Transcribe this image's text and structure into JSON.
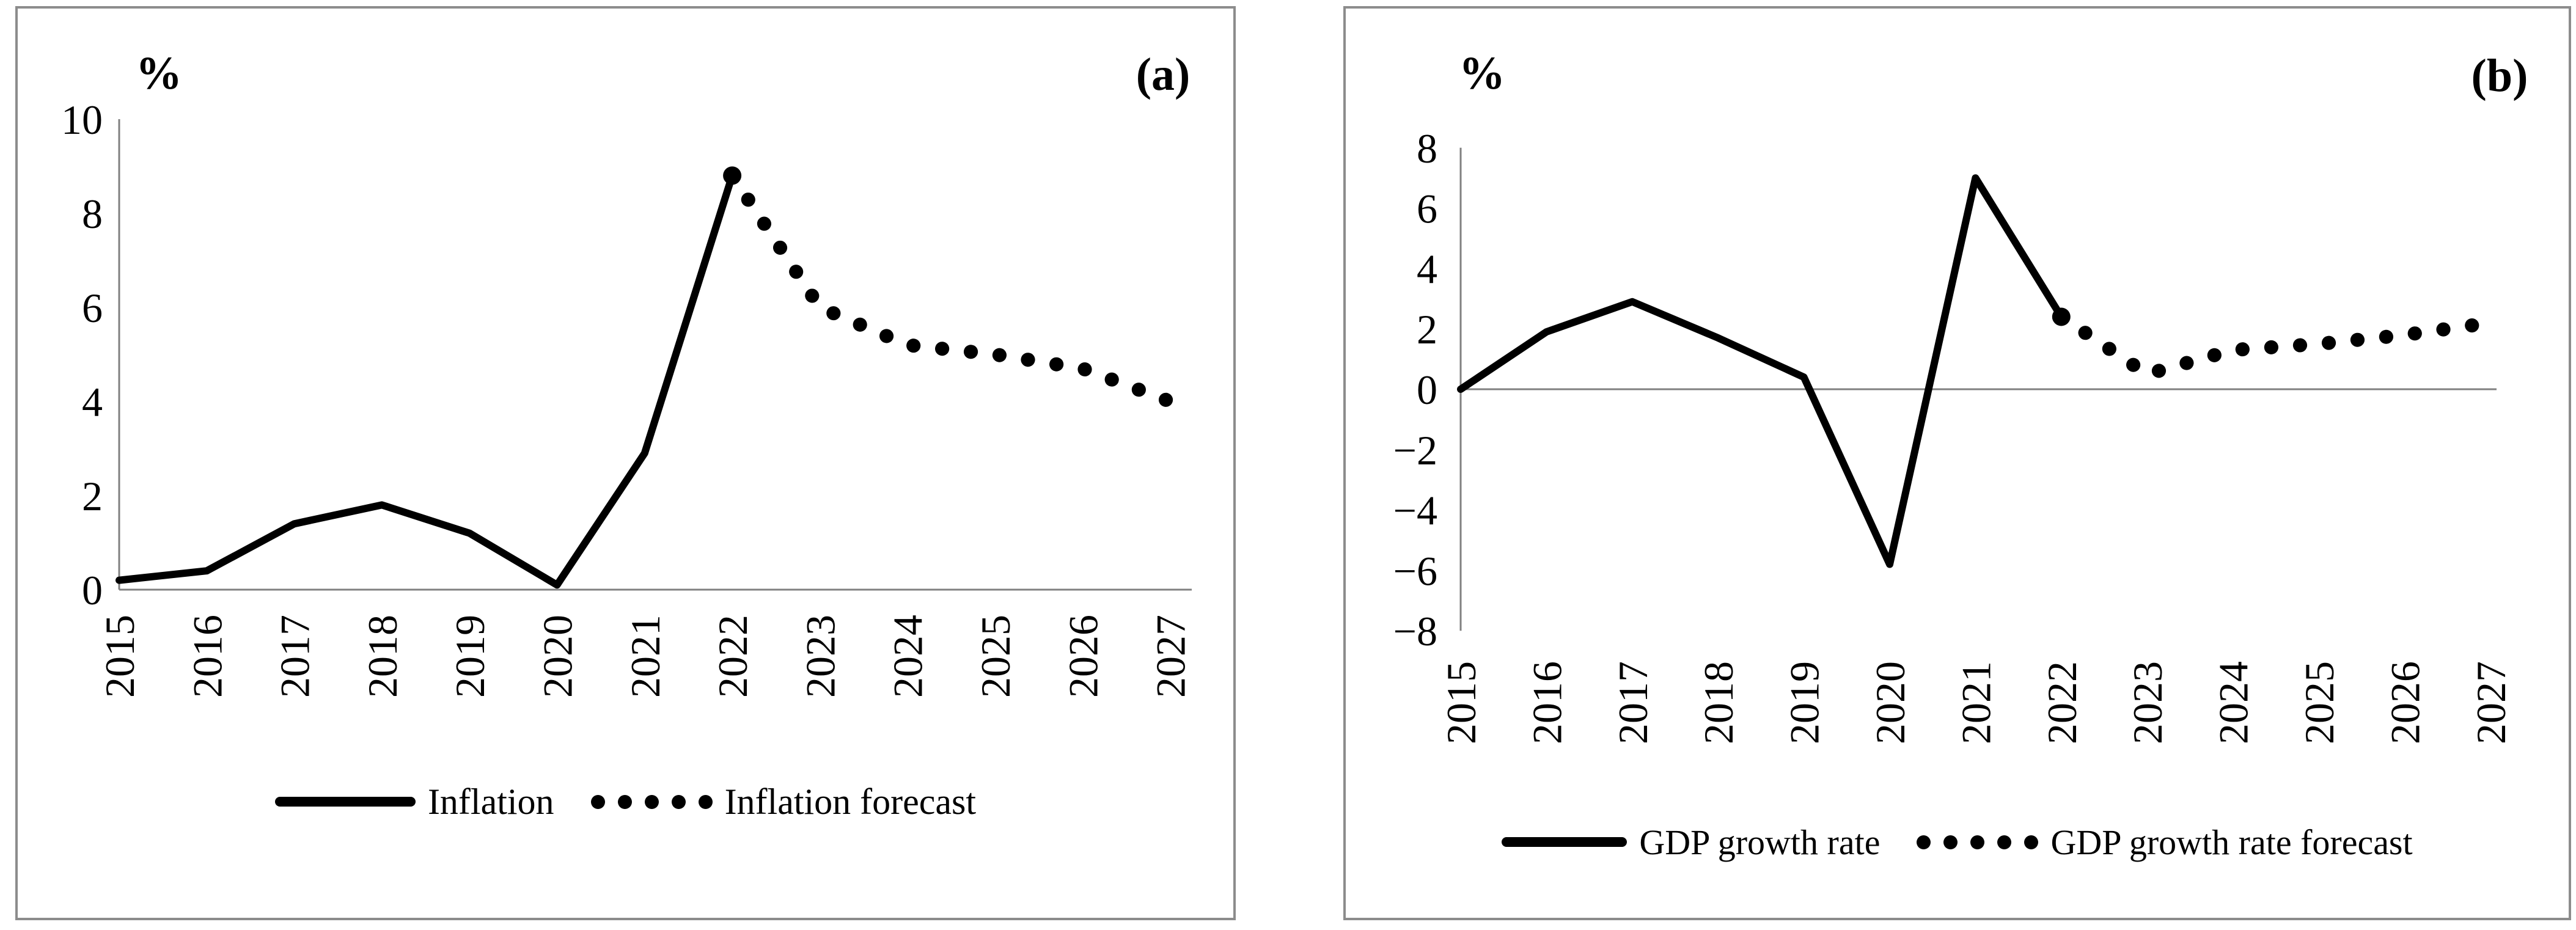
{
  "figure": {
    "background": "#ffffff",
    "panel_border_color": "#8c8c8c",
    "axis_color": "#808080",
    "series_color": "#000000",
    "text_color": "#000000"
  },
  "chart_data": [
    {
      "type": "line",
      "panel_label": "(a)",
      "unit": "%",
      "categories": [
        "2015",
        "2016",
        "2017",
        "2018",
        "2019",
        "2020",
        "2021",
        "2022",
        "2023",
        "2024",
        "2025",
        "2026",
        "2027"
      ],
      "series": [
        {
          "name": "Inflation",
          "style": "solid",
          "start_index": 0,
          "values": [
            0.2,
            0.4,
            1.4,
            1.8,
            1.2,
            0.1,
            2.9,
            8.8
          ]
        },
        {
          "name": "Inflation forecast",
          "style": "dotted",
          "start_index": 7,
          "values": [
            8.8,
            6.0,
            5.2,
            5.0,
            4.7,
            4.0
          ]
        }
      ],
      "ylim": [
        0,
        10
      ],
      "yticks": [
        0,
        2,
        4,
        6,
        8,
        10
      ],
      "ytick_labels": [
        "0",
        "2",
        "4",
        "6",
        "8",
        "10"
      ],
      "grid": false,
      "legend_position": "bottom",
      "junction_marker_year": "2022"
    },
    {
      "type": "line",
      "panel_label": "(b)",
      "unit": "%",
      "categories": [
        "2015",
        "2016",
        "2017",
        "2018",
        "2019",
        "2020",
        "2021",
        "2022",
        "2023",
        "2024",
        "2025",
        "2026",
        "2027"
      ],
      "series": [
        {
          "name": "GDP growth rate",
          "style": "solid",
          "start_index": 0,
          "values": [
            0.0,
            1.9,
            2.9,
            1.7,
            0.4,
            -5.8,
            7.0,
            2.4
          ]
        },
        {
          "name": "GDP growth rate forecast",
          "style": "dotted",
          "start_index": 7,
          "values": [
            2.4,
            0.5,
            1.3,
            1.5,
            1.8,
            2.2
          ]
        }
      ],
      "ylim": [
        -8,
        8
      ],
      "yticks": [
        -8,
        -6,
        -4,
        -2,
        0,
        2,
        4,
        6,
        8
      ],
      "ytick_labels": [
        "−8",
        "−6",
        "−4",
        "−2",
        "0",
        "2",
        "4",
        "6",
        "8"
      ],
      "grid": false,
      "legend_position": "bottom",
      "junction_marker_year": "2022"
    }
  ]
}
